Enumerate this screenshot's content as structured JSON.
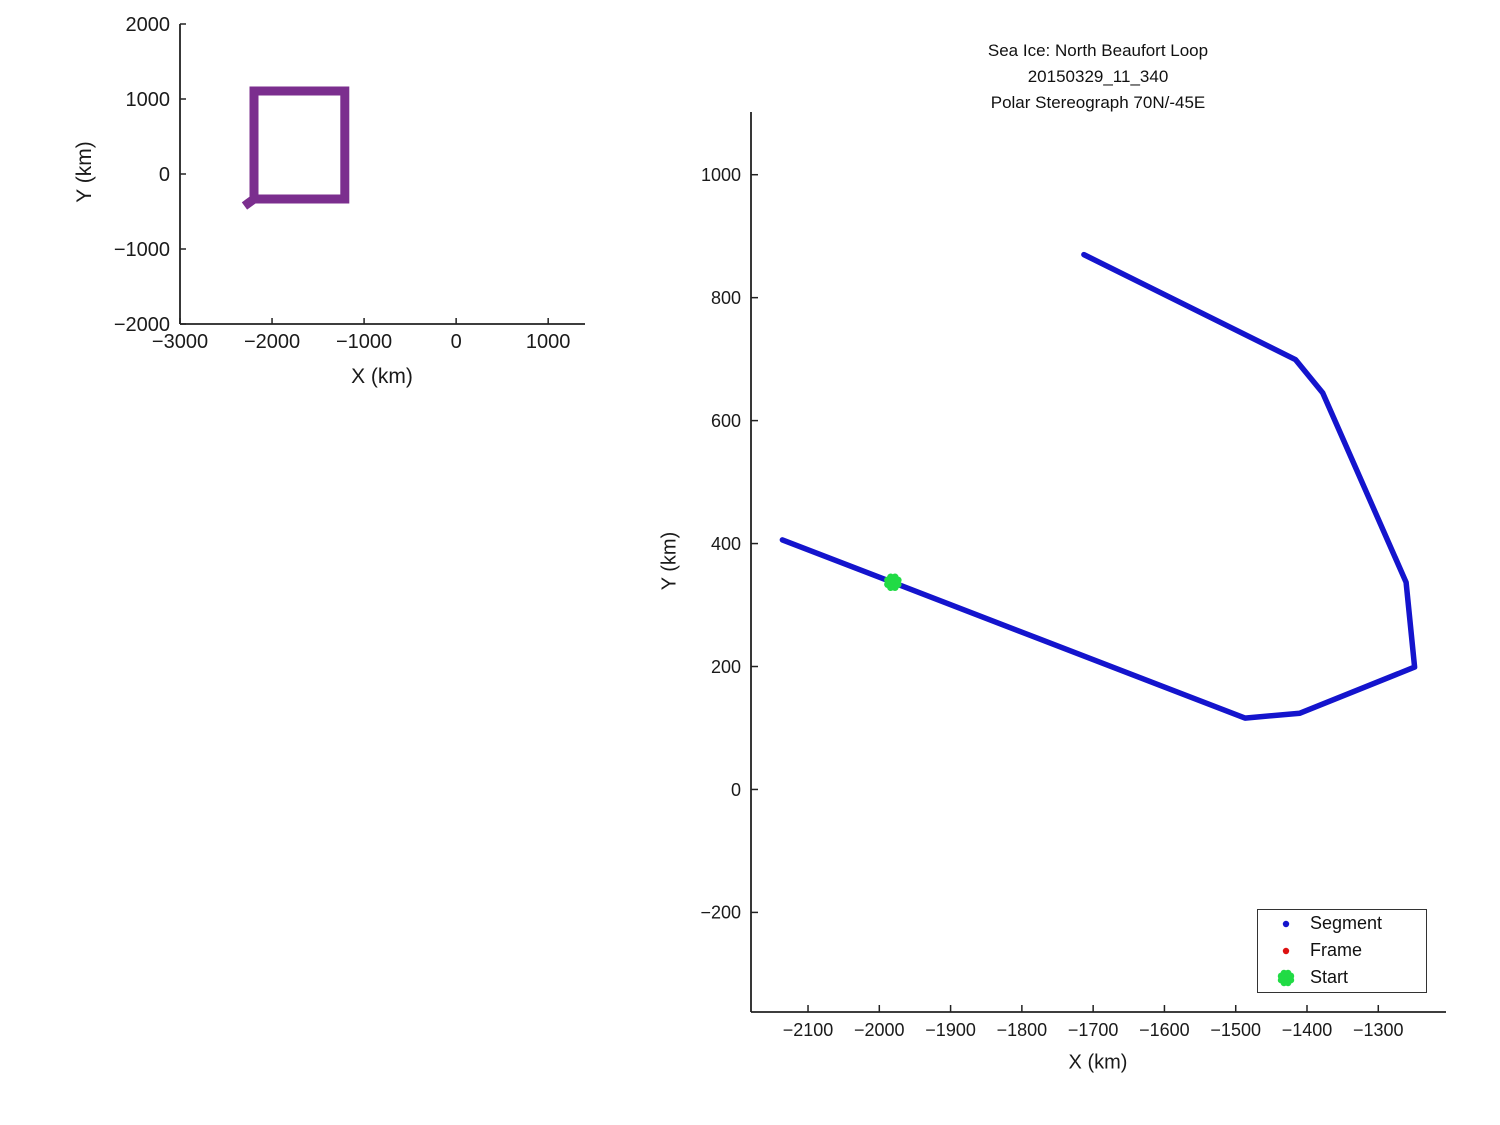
{
  "figure": {
    "background": "#ffffff",
    "axis_color": "#222222"
  },
  "title": {
    "line1": "Sea Ice: North Beaufort Loop",
    "line2": "20150329_11_340",
    "line3": "Polar Stereograph 70N/-45E"
  },
  "legend": {
    "items": [
      {
        "label": "Segment",
        "marker": "dot",
        "color": "#1414cd"
      },
      {
        "label": "Frame",
        "marker": "dot",
        "color": "#dd1111"
      },
      {
        "label": "Start",
        "marker": "blob",
        "color": "#21db45"
      }
    ]
  },
  "chart_data": [
    {
      "name": "overview-map",
      "type": "line",
      "title": "",
      "xlabel": "X (km)",
      "ylabel": "Y (km)",
      "xlim": [
        -3000,
        1400
      ],
      "ylim": [
        -2000,
        2000
      ],
      "xticks": [
        -3000,
        -2000,
        -1000,
        0,
        1000
      ],
      "yticks": [
        -2000,
        -1000,
        0,
        1000,
        2000
      ],
      "grid": false,
      "series": [
        {
          "name": "planned-loop-box",
          "color": "#7b2e8e",
          "width": 9,
          "cap": "square",
          "points": [
            [
              -2196,
              -333
            ],
            [
              -2196,
              1107
            ],
            [
              -1210,
              1107
            ],
            [
              -1210,
              -333
            ],
            [
              -2196,
              -333
            ]
          ]
        },
        {
          "name": "loop-start-stub",
          "color": "#7b2e8e",
          "width": 9,
          "cap": "square",
          "points": [
            [
              -2260,
              -390
            ],
            [
              -2196,
              -333
            ]
          ]
        }
      ],
      "markers": []
    },
    {
      "name": "segment-track",
      "type": "line",
      "title": "Sea Ice: North Beaufort Loop 20150329_11_340 Polar Stereograph 70N/-45E",
      "xlabel": "X (km)",
      "ylabel": "Y (km)",
      "xlim": [
        -2180,
        -1205
      ],
      "ylim": [
        -362,
        1102
      ],
      "xticks": [
        -2100,
        -2000,
        -1900,
        -1800,
        -1700,
        -1600,
        -1500,
        -1400,
        -1300
      ],
      "yticks": [
        -200,
        0,
        200,
        400,
        600,
        800,
        1000
      ],
      "grid": false,
      "legend_position": "bottom-right",
      "series": [
        {
          "name": "segment-path",
          "color": "#1414cd",
          "width": 5.5,
          "cap": "round",
          "points": [
            [
              -1713,
              870
            ],
            [
              -1416,
              699
            ],
            [
              -1378,
              645
            ],
            [
              -1261,
              337
            ],
            [
              -1249,
              199
            ],
            [
              -1410,
              124
            ],
            [
              -1487,
              116
            ],
            [
              -2136,
              406
            ]
          ]
        }
      ],
      "markers": [
        {
          "name": "start-marker",
          "shape": "blob",
          "x": -1981,
          "y": 337,
          "color": "#21db45",
          "size": 17
        }
      ]
    }
  ]
}
